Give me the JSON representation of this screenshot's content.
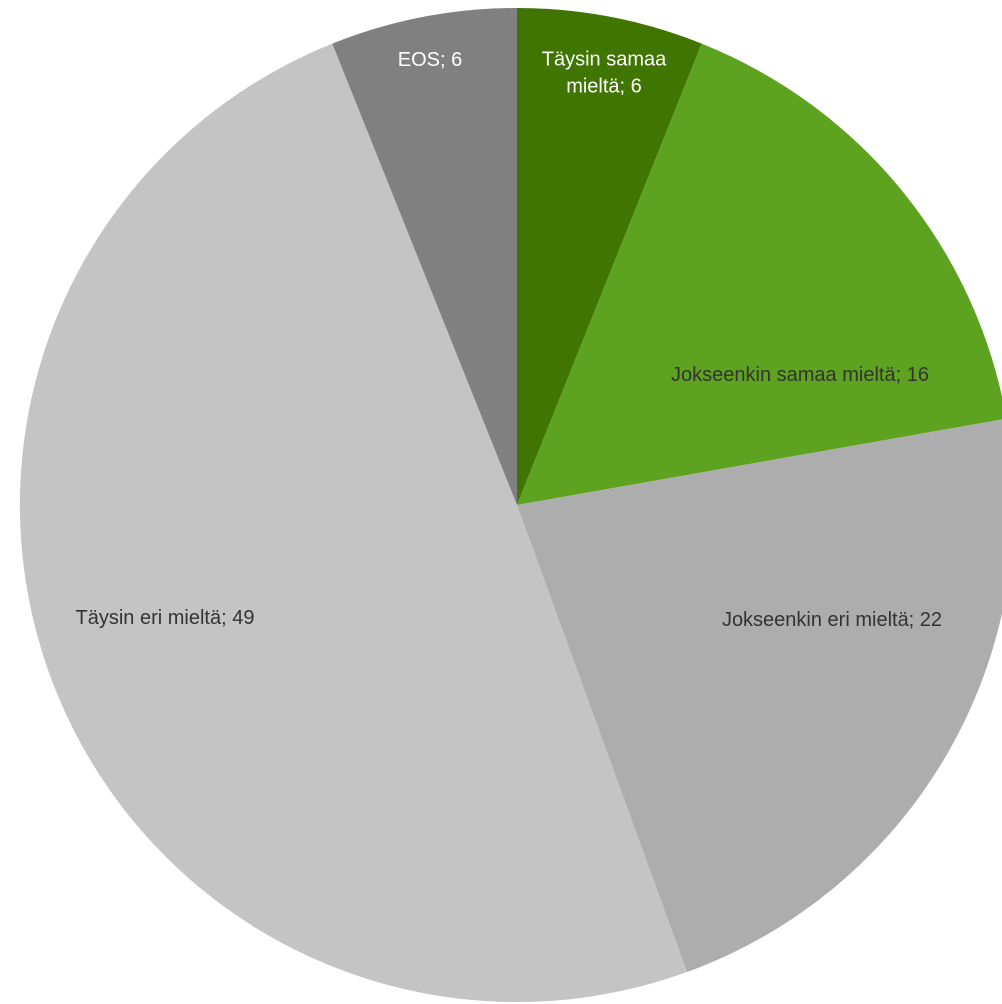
{
  "chart_data": {
    "type": "pie",
    "title": "",
    "slices": [
      {
        "label": "Täysin samaa mieltä; 6",
        "label_lines": [
          "Täysin samaa",
          "mieltä; 6"
        ],
        "category": "Täysin samaa mieltä",
        "value": 6,
        "color": "#3F7500",
        "label_color": "#ffffff"
      },
      {
        "label": "Jokseenkin samaa mieltä; 16",
        "label_lines": [
          "Jokseenkin samaa mieltä; 16"
        ],
        "category": "Jokseenkin samaa mieltä",
        "value": 16,
        "color": "#5EA320",
        "label_color": "#333333"
      },
      {
        "label": "Jokseenkin eri mieltä; 22",
        "label_lines": [
          "Jokseenkin eri mieltä; 22"
        ],
        "category": "Jokseenkin eri mieltä",
        "value": 22,
        "color": "#ADADAD",
        "label_color": "#333333"
      },
      {
        "label": "Täysin eri mieltä; 49",
        "label_lines": [
          "Täysin eri mieltä; 49"
        ],
        "category": "Täysin eri mieltä",
        "value": 49,
        "color": "#C4C4C4",
        "label_color": "#333333"
      },
      {
        "label": "EOS; 6",
        "label_lines": [
          "EOS; 6"
        ],
        "category": "EOS",
        "value": 6,
        "color": "#808080",
        "label_color": "#ffffff"
      }
    ]
  }
}
